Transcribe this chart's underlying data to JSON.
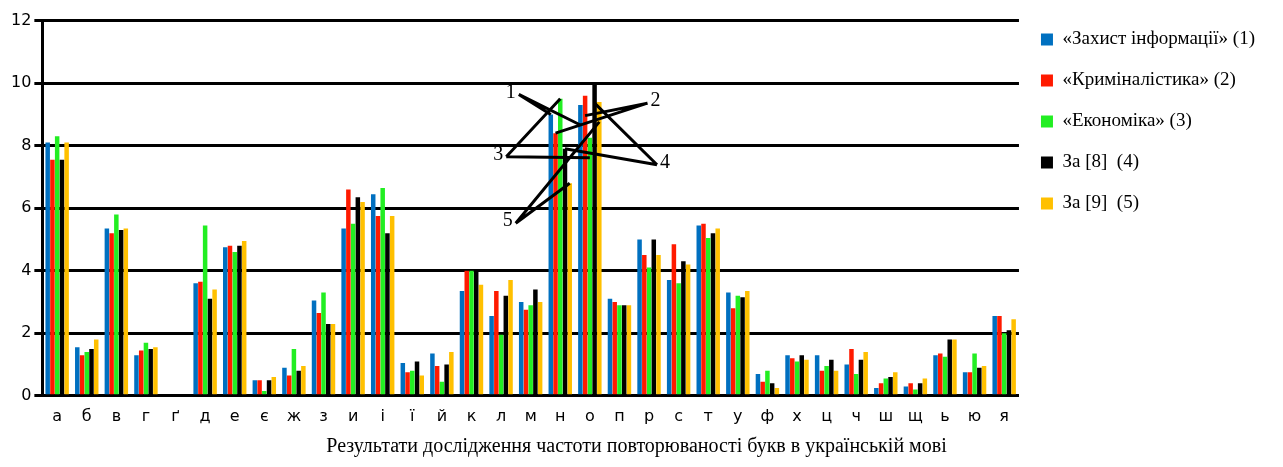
{
  "chart_data": {
    "type": "bar",
    "title": "Результати дослідження частоти повторюваності букв в українській мові",
    "categories": [
      "а",
      "б",
      "в",
      "г",
      "ґ",
      "д",
      "е",
      "є",
      "ж",
      "з",
      "и",
      "і",
      "ї",
      "й",
      "к",
      "л",
      "м",
      "н",
      "о",
      "п",
      "р",
      "с",
      "т",
      "у",
      "ф",
      "х",
      "ц",
      "ч",
      "ш",
      "щ",
      "ь",
      "ю",
      "я"
    ],
    "series": [
      {
        "name": "«Захист інформації» (1)",
        "color": "#0070c0",
        "values": [
          8.1,
          1.55,
          5.35,
          1.3,
          0,
          3.6,
          4.75,
          0.5,
          0.9,
          3.05,
          5.35,
          6.45,
          1.05,
          1.35,
          3.35,
          2.55,
          3.0,
          9.0,
          9.3,
          3.1,
          5.0,
          3.7,
          5.45,
          3.3,
          0.7,
          1.3,
          1.3,
          1.0,
          0.25,
          0.3,
          1.3,
          0.75,
          2.55
        ]
      },
      {
        "name": "«Криміналістика» (2)",
        "color": "#ff1a00",
        "values": [
          7.55,
          1.3,
          5.2,
          1.45,
          0,
          3.65,
          4.8,
          0.5,
          0.65,
          2.65,
          6.6,
          5.75,
          0.75,
          0.95,
          4.0,
          3.35,
          2.75,
          8.4,
          9.6,
          3.0,
          4.5,
          4.85,
          5.5,
          2.8,
          0.45,
          1.2,
          0.8,
          1.5,
          0.4,
          0.4,
          1.35,
          0.75,
          2.55
        ]
      },
      {
        "name": "«Економіка» (3)",
        "color": "#22ee22",
        "values": [
          8.3,
          1.4,
          5.8,
          1.7,
          0,
          5.45,
          4.6,
          0.15,
          1.5,
          3.3,
          5.5,
          6.65,
          0.8,
          0.45,
          4.0,
          1.95,
          2.9,
          9.5,
          8.25,
          2.9,
          4.1,
          3.6,
          5.05,
          3.2,
          0.8,
          1.1,
          0.95,
          0.7,
          0.55,
          0.2,
          1.25,
          1.35,
          2.0
        ]
      },
      {
        "name": "За [8]  (4)",
        "color": "#000000",
        "values": [
          7.55,
          1.5,
          5.3,
          1.5,
          0,
          3.1,
          4.8,
          0.5,
          0.8,
          2.3,
          6.35,
          5.2,
          1.1,
          1.0,
          4.0,
          3.2,
          3.4,
          7.9,
          10.0,
          2.9,
          5.0,
          4.3,
          5.2,
          3.15,
          0.4,
          1.3,
          1.15,
          1.15,
          0.6,
          0.4,
          1.8,
          0.9,
          2.1
        ]
      },
      {
        "name": "За [9]  (5)",
        "color": "#ffc000",
        "values": [
          8.1,
          1.8,
          5.35,
          1.55,
          0,
          3.4,
          4.95,
          0.6,
          0.95,
          2.3,
          6.2,
          5.75,
          0.65,
          1.4,
          3.55,
          3.7,
          3.0,
          6.8,
          9.4,
          2.9,
          4.5,
          4.2,
          5.35,
          3.35,
          0.25,
          1.15,
          0.8,
          1.4,
          0.75,
          0.55,
          1.8,
          0.95,
          2.45
        ]
      }
    ],
    "annotations": [
      {
        "text": "1",
        "x": "н",
        "y": 9.0
      },
      {
        "text": "2",
        "x": "н",
        "y": 8.4
      },
      {
        "text": "3",
        "x": "н",
        "y": 9.5
      },
      {
        "text": "4",
        "x": "н",
        "y": 7.9
      },
      {
        "text": "5",
        "x": "н",
        "y": 6.8
      }
    ],
    "ylim": [
      0,
      12
    ],
    "yticks": [
      0,
      2,
      4,
      6,
      8,
      10,
      12
    ],
    "grid": "y",
    "legend": "top right"
  }
}
